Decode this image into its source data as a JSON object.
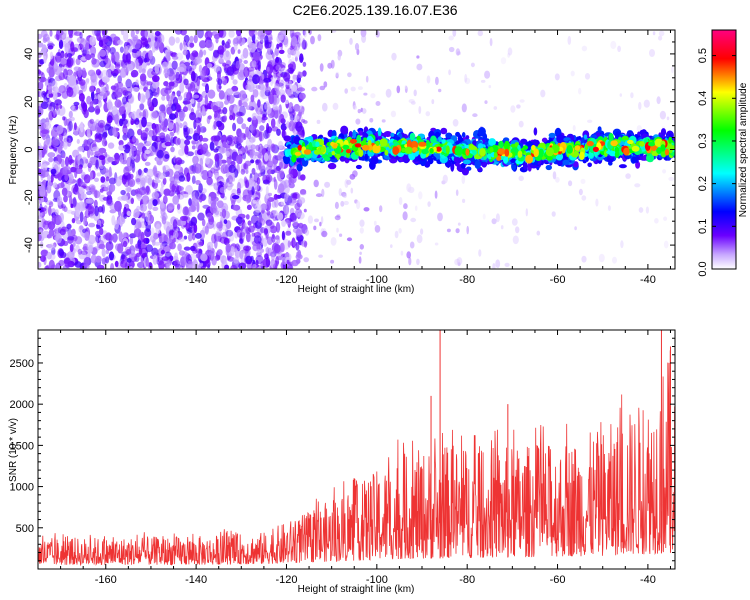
{
  "title": "C2E6.2025.139.16.07.E36",
  "chart_data": [
    {
      "type": "heatmap",
      "xlabel": "Height of straight line (km)",
      "ylabel": "Frequency (Hz)",
      "xlim": [
        -175,
        -34
      ],
      "ylim": [
        -50,
        50
      ],
      "xticks": [
        -160,
        -140,
        -120,
        -100,
        -80,
        -60,
        -40
      ],
      "yticks": [
        -40,
        -20,
        0,
        20,
        40
      ],
      "colorbar": {
        "label": "Normalized spectral amplitude",
        "range": [
          0,
          0.56
        ],
        "ticks": [
          "0.0",
          "0.1",
          "0.2",
          "0.3",
          "0.4",
          "0.5"
        ],
        "stops": [
          "#ffffff",
          "#6a00ff",
          "#0000ff",
          "#00ffff",
          "#00ff00",
          "#ffff00",
          "#ff0000",
          "#ff0080"
        ]
      },
      "features": {
        "noise_region_x": [
          -175,
          -120
        ],
        "signal_band_x": [
          -120,
          -34
        ],
        "signal_band_center_hz": 0,
        "signal_band_halfwidth_hz": 8,
        "signal_peak_amplitude": 0.5
      }
    },
    {
      "type": "line",
      "xlabel": "Height of straight line (km)",
      "ylabel": "SNR (10 * v/v)",
      "xlim": [
        -175,
        -34
      ],
      "ylim": [
        0,
        2900
      ],
      "xticks": [
        -160,
        -140,
        -120,
        -100,
        -80,
        -60,
        -40
      ],
      "yticks": [
        500,
        1000,
        1500,
        2000,
        2500
      ],
      "series": [
        {
          "color": "#ee3333",
          "envelope": [
            {
              "x": -175,
              "low": 50,
              "high": 380
            },
            {
              "x": -140,
              "low": 50,
              "high": 400
            },
            {
              "x": -125,
              "low": 60,
              "high": 450
            },
            {
              "x": -115,
              "low": 80,
              "high": 700
            },
            {
              "x": -105,
              "low": 100,
              "high": 1000
            },
            {
              "x": -95,
              "low": 120,
              "high": 1400
            },
            {
              "x": -85,
              "low": 130,
              "high": 1500
            },
            {
              "x": -70,
              "low": 140,
              "high": 1500
            },
            {
              "x": -60,
              "low": 150,
              "high": 1550
            },
            {
              "x": -50,
              "low": 160,
              "high": 1700
            },
            {
              "x": -40,
              "low": 180,
              "high": 2100
            },
            {
              "x": -34,
              "low": 200,
              "high": 2800
            }
          ],
          "spikes": [
            {
              "x": -86,
              "y": 2900
            },
            {
              "x": -88,
              "y": 2100
            },
            {
              "x": -71,
              "y": 2000
            },
            {
              "x": -37,
              "y": 2900
            },
            {
              "x": -35,
              "y": 2700
            }
          ]
        }
      ]
    }
  ]
}
